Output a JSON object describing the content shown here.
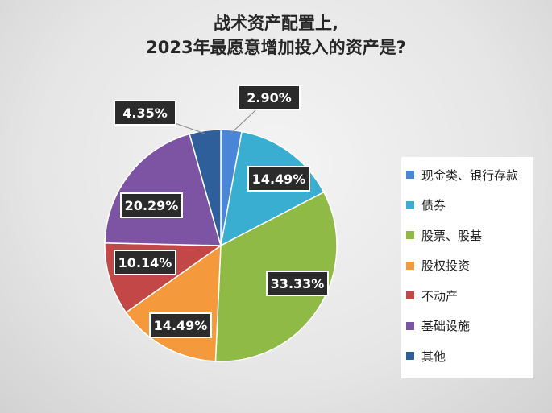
{
  "chart_data": {
    "type": "pie",
    "title": [
      "战术资产配置上,",
      "2023年最愿意增加投入的资产是?"
    ],
    "categories": [
      "现金类、银行存款",
      "债券",
      "股票、股基",
      "股权投资",
      "不动产",
      "基础设施",
      "其他"
    ],
    "values": [
      2.9,
      14.49,
      33.33,
      14.49,
      10.14,
      20.29,
      4.35
    ],
    "labels": [
      "2.90%",
      "14.49%",
      "33.33%",
      "14.49%",
      "10.14%",
      "20.29%",
      "4.35%"
    ],
    "colors": [
      "#4a86d8",
      "#3aaed0",
      "#8eba45",
      "#f4993c",
      "#c44748",
      "#7d54a4",
      "#2e5f9a"
    ],
    "legend_position": "right"
  }
}
